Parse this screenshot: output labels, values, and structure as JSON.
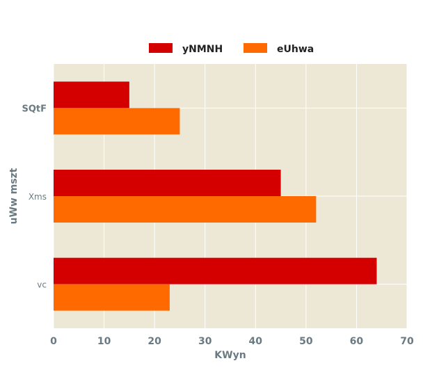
{
  "chart_data": {
    "type": "bar",
    "orientation": "horizontal",
    "categories": [
      "SQtF",
      "Xms",
      "vc"
    ],
    "series": [
      {
        "name": "yNMNH",
        "values": [
          15,
          45,
          64
        ],
        "color": "#d40000"
      },
      {
        "name": "eUhwa",
        "values": [
          25,
          52,
          23
        ],
        "color": "#ff6a00"
      }
    ],
    "xlabel": "KWyn",
    "ylabel": "uWw  mszt",
    "xlim": [
      0,
      70
    ],
    "xticks": [
      "0",
      "10",
      "20",
      "30",
      "40",
      "50",
      "60",
      "70"
    ],
    "grid": true,
    "legend_position": "top",
    "plot_background": "#ede7d6"
  }
}
